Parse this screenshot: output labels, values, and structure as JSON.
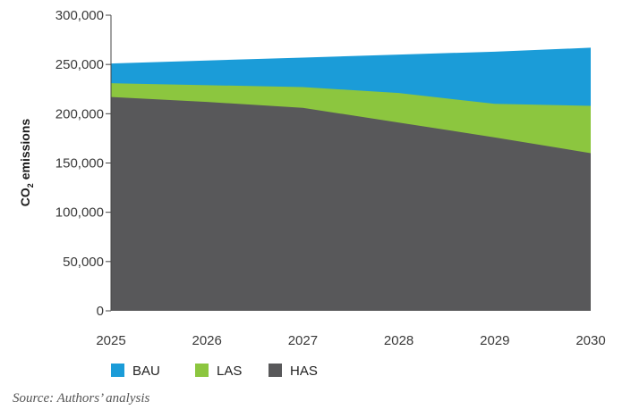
{
  "chart_data": {
    "type": "area",
    "stacked": true,
    "x": [
      "2025",
      "2026",
      "2027",
      "2028",
      "2029",
      "2030"
    ],
    "ylabel_main": "CO",
    "ylabel_sub": "2",
    "ylabel_rest": " emissions",
    "ylim": [
      0,
      300000
    ],
    "yticks": [
      0,
      50000,
      100000,
      150000,
      200000,
      250000,
      300000
    ],
    "ytick_labels": [
      "0",
      "50,000",
      "100,000",
      "150,000",
      "200,000",
      "250,000",
      "300,000"
    ],
    "grid": false,
    "legend_position": "bottom-left",
    "series": [
      {
        "name": "HAS",
        "color": "#58585a",
        "values": [
          217000,
          212000,
          206000,
          191000,
          176000,
          160000
        ]
      },
      {
        "name": "LAS",
        "color": "#8cc63f",
        "values": [
          231000,
          229000,
          227000,
          221000,
          210000,
          208000
        ]
      },
      {
        "name": "BAU",
        "color": "#1b9cd8",
        "values": [
          251000,
          254000,
          257000,
          260000,
          263000,
          267000
        ]
      }
    ],
    "legend_order": [
      "BAU",
      "LAS",
      "HAS"
    ]
  },
  "source_note": "Source: Authors’ analysis"
}
